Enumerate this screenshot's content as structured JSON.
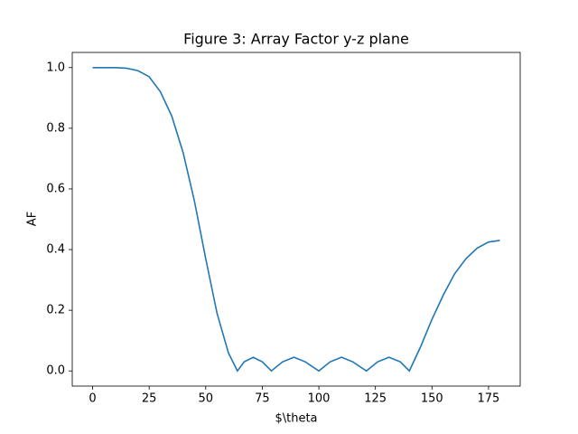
{
  "chart_data": {
    "type": "line",
    "title": "Figure 3: Array Factor y-z plane",
    "x_label": "$\\theta",
    "y_label": "AF",
    "x": [
      0,
      5,
      10,
      15,
      20,
      25,
      30,
      35,
      40,
      45,
      50,
      55,
      60,
      64,
      67,
      71,
      75,
      79,
      84,
      89,
      94,
      100,
      105,
      110,
      115,
      121,
      126,
      131,
      136,
      140,
      145,
      150,
      155,
      160,
      165,
      170,
      175,
      180
    ],
    "series": [
      {
        "name": "AF",
        "color": "#1f77b4",
        "values": [
          1.0,
          1.0,
          1.0,
          0.998,
          0.99,
          0.97,
          0.92,
          0.84,
          0.72,
          0.56,
          0.37,
          0.19,
          0.06,
          0.0,
          0.03,
          0.045,
          0.03,
          0.0,
          0.03,
          0.045,
          0.03,
          0.0,
          0.03,
          0.045,
          0.03,
          0.0,
          0.03,
          0.045,
          0.03,
          0.0,
          0.08,
          0.17,
          0.25,
          0.32,
          0.37,
          0.405,
          0.425,
          0.43
        ]
      }
    ],
    "xlim": [
      -9,
      189
    ],
    "ylim": [
      -0.05,
      1.05
    ],
    "xticks": [
      0,
      25,
      50,
      75,
      100,
      125,
      150,
      175
    ],
    "yticks": [
      {
        "value": 0,
        "label": "0.0"
      },
      {
        "value": 0.2,
        "label": "0.2"
      },
      {
        "value": 0.4,
        "label": "0.4"
      },
      {
        "value": 0.6,
        "label": "0.6"
      },
      {
        "value": 0.8,
        "label": "0.8"
      },
      {
        "value": 1,
        "label": "1.0"
      }
    ],
    "grid": false
  }
}
